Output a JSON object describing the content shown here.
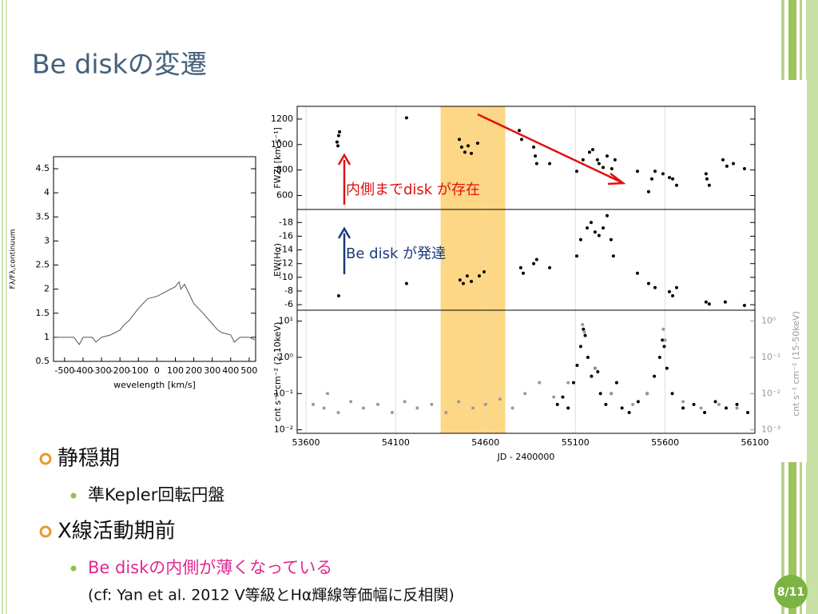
{
  "title": "Be diskの変遷",
  "bullets": [
    {
      "text": "静穏期",
      "sub": [
        "準Kepler回転円盤"
      ]
    },
    {
      "text": "X線活動期前",
      "sub": [
        "Be diskの内側が薄くなっている"
      ],
      "note": "(cf: Yan et al. 2012 V等級とHα輝線等価幅に反相関)"
    }
  ],
  "page_number": "8/11",
  "chart_data": [
    {
      "type": "line",
      "xlabel": "wevelength [km/s]",
      "ylabel": "Fλ/Fλ,continuum",
      "x": [
        -550,
        -500,
        -450,
        -420,
        -400,
        -350,
        -330,
        -300,
        -250,
        -200,
        -180,
        -150,
        -100,
        -50,
        0,
        50,
        100,
        120,
        130,
        150,
        200,
        250,
        300,
        330,
        350,
        400,
        420,
        450,
        500,
        530
      ],
      "values": [
        1.0,
        1.0,
        1.0,
        0.85,
        1.0,
        1.0,
        0.9,
        1.0,
        1.05,
        1.15,
        1.25,
        1.35,
        1.6,
        1.8,
        1.85,
        1.95,
        2.05,
        2.15,
        2.0,
        2.1,
        1.7,
        1.5,
        1.28,
        1.15,
        1.1,
        1.05,
        0.9,
        1.0,
        1.0,
        0.95
      ],
      "color": "#555555",
      "xlim": [
        -560,
        535
      ],
      "xticks": [
        -500,
        -400,
        -300,
        -200,
        -100,
        0,
        100,
        200,
        300,
        400,
        500
      ],
      "ylim": [
        0.5,
        4.75
      ],
      "yticks": [
        0.5,
        1,
        1.5,
        2,
        2.5,
        3,
        3.5,
        4,
        4.5
      ],
      "grid": false
    },
    {
      "type": "scatter",
      "ylabel": "FWZI [km s⁻¹]",
      "x": [
        53778,
        53773,
        53782,
        53787,
        54160,
        54454,
        54467,
        54485,
        54503,
        54521,
        54556,
        54788,
        54801,
        54868,
        54877,
        54885,
        54957,
        55108,
        55179,
        55197,
        55223,
        55232,
        55255,
        55277,
        55303,
        55321,
        55143,
        55446,
        55508,
        55526,
        55544,
        55588,
        55624,
        55642,
        55664,
        55833,
        55846,
        55828,
        55922,
        55944,
        55980,
        56042
      ],
      "values": [
        990,
        1020,
        1070,
        1100,
        1210,
        1040,
        980,
        940,
        990,
        930,
        1010,
        1110,
        1040,
        980,
        910,
        850,
        850,
        790,
        940,
        960,
        880,
        850,
        820,
        910,
        810,
        880,
        880,
        790,
        630,
        730,
        790,
        770,
        740,
        730,
        680,
        730,
        680,
        770,
        880,
        830,
        850,
        810
      ],
      "color": "#000000",
      "xlim": [
        53551,
        56100
      ],
      "ylim": [
        490,
        1300
      ],
      "yticks": [
        600,
        800,
        1000,
        1200
      ],
      "shaded_range": {
        "x": [
          54350,
          54710
        ],
        "color": "#fdd785"
      },
      "annotations": [
        {
          "text": "内側までdisk が存在"
        }
      ]
    },
    {
      "type": "scatter",
      "ylabel": "EW(Hα)",
      "x": [
        53782,
        54160,
        54458,
        54476,
        54498,
        54521,
        54565,
        54592,
        54796,
        54810,
        54868,
        54885,
        54957,
        55108,
        55166,
        55188,
        55210,
        55232,
        55255,
        55277,
        55299,
        55312,
        55130,
        55446,
        55508,
        55544,
        55624,
        55642,
        55664,
        55828,
        55846,
        55935,
        56042
      ],
      "values": [
        -7.3,
        -9.1,
        -9.6,
        -9.1,
        -10.2,
        -9.4,
        -10.2,
        -10.8,
        -11.4,
        -10.6,
        -12.0,
        -12.6,
        -11.4,
        -13.1,
        -17.2,
        -18.0,
        -16.6,
        -16.1,
        -17.2,
        -19.0,
        -15.5,
        -13.1,
        -15.5,
        -10.6,
        -9.1,
        -8.5,
        -7.9,
        -7.3,
        -8.5,
        -6.4,
        -6.1,
        -6.4,
        -5.9
      ],
      "color": "#000000",
      "xlim": [
        53551,
        56100
      ],
      "ylim": [
        -5.2,
        -19.9
      ],
      "yticks": [
        -18,
        -16,
        -14,
        -12,
        -10,
        -8,
        -6
      ],
      "annotations": [
        {
          "text": "Be disk が発達"
        }
      ]
    },
    {
      "type": "scatter",
      "xlabel": "JD - 2400000",
      "ylabel": "cnt s⁻¹ cm⁻² (2-10keV)",
      "y2label": "cnt s⁻¹ cm⁻² (15-50keV)",
      "log_y": true,
      "xlim": [
        53551,
        56100
      ],
      "xticks": [
        53600,
        54100,
        54600,
        55100,
        55600,
        56100
      ],
      "grid": true,
      "ylim": [
        0.008,
        20
      ],
      "yticks": [
        {
          "value": 0.01,
          "label": "10⁻²"
        },
        {
          "value": 0.1,
          "label": "10⁻¹"
        },
        {
          "value": 1,
          "label": "10⁰"
        },
        {
          "value": 10,
          "label": "10¹"
        }
      ],
      "y2lim": [
        0.0008,
        2
      ],
      "y2ticks": [
        {
          "value": 0.001,
          "label": "10⁻³"
        },
        {
          "value": 0.01,
          "label": "10⁻²"
        },
        {
          "value": 0.1,
          "label": "10⁻¹"
        },
        {
          "value": 1,
          "label": "10⁰"
        }
      ],
      "series": [
        {
          "color": "#000000",
          "x": [
            55000,
            55030,
            55060,
            55090,
            55110,
            55130,
            55145,
            55155,
            55170,
            55190,
            55210,
            55225,
            55240,
            55270,
            55300,
            55330,
            55360,
            55400,
            55450,
            55500,
            55540,
            55570,
            55585,
            55595,
            55610,
            55640,
            55700,
            55760,
            55820,
            55880,
            55940,
            56000,
            56060
          ],
          "values": [
            0.05,
            0.08,
            0.04,
            0.2,
            0.6,
            2,
            6,
            4,
            1,
            0.3,
            0.5,
            0.4,
            0.1,
            0.05,
            0.1,
            0.2,
            0.04,
            0.03,
            0.06,
            0.1,
            0.3,
            1,
            3,
            2,
            0.5,
            0.1,
            0.04,
            0.05,
            0.03,
            0.06,
            0.04,
            0.05,
            0.03
          ]
        },
        {
          "color": "#999999",
          "axis": "y2",
          "x": [
            53640,
            53700,
            53720,
            53780,
            53850,
            53920,
            54000,
            54080,
            54150,
            54220,
            54300,
            54380,
            54450,
            54530,
            54600,
            54680,
            54750,
            54820,
            54900,
            54980,
            55060,
            55140,
            55150,
            55210,
            55300,
            55420,
            55500,
            55590,
            55600,
            55700,
            55800,
            55900,
            56000
          ],
          "values": [
            0.005,
            0.004,
            0.01,
            0.003,
            0.006,
            0.004,
            0.005,
            0.003,
            0.006,
            0.004,
            0.005,
            0.003,
            0.006,
            0.004,
            0.005,
            0.007,
            0.004,
            0.01,
            0.02,
            0.008,
            0.02,
            0.8,
            0.5,
            0.05,
            0.01,
            0.005,
            0.01,
            0.6,
            0.3,
            0.006,
            0.004,
            0.005,
            0.004
          ]
        }
      ]
    }
  ]
}
